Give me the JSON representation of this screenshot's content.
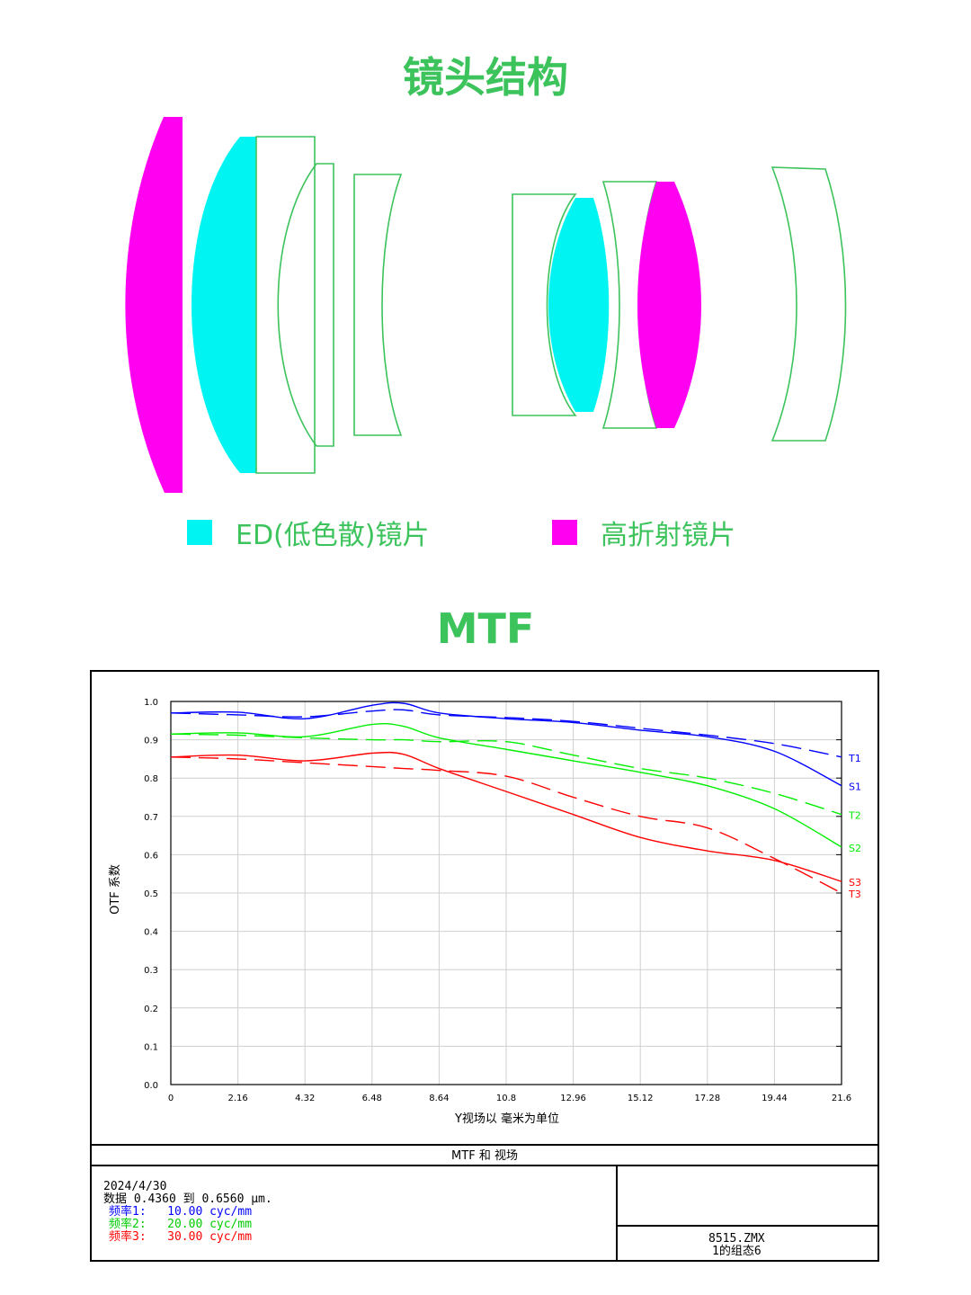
{
  "titles": {
    "structure": "镜头结构",
    "mtf": "MTF"
  },
  "legend": [
    {
      "label": "ED(低色散)镜片",
      "color": "#00f5f2"
    },
    {
      "label": "高折射镜片",
      "color": "#ff00f0"
    }
  ],
  "colors": {
    "green": "#3cc35c",
    "outline": "#3cc35c",
    "ed": "#00f5f2",
    "high_index": "#ff00f0"
  },
  "chart_data": {
    "type": "line",
    "title": "MTF 和 视场",
    "xlabel": "Y视场以 毫米为单位",
    "ylabel": "OTF 系数",
    "xlim": [
      0,
      21.6
    ],
    "ylim": [
      0,
      1.0
    ],
    "grid": true,
    "x_ticks": [
      0,
      2.16,
      4.32,
      6.48,
      8.64,
      10.8,
      12.96,
      15.12,
      17.28,
      19.44,
      21.6
    ],
    "x_tick_labels": [
      "0",
      "2.16",
      "4.32",
      "6.48",
      "8.64",
      "10.8",
      "12.96",
      "15.12",
      "17.28",
      "19.44",
      "21.6"
    ],
    "y_ticks": [
      0,
      0.1,
      0.2,
      0.3,
      0.4,
      0.5,
      0.6,
      0.7,
      0.8,
      0.9,
      1.0
    ],
    "y_tick_labels": [
      "0.0",
      "0.1",
      "0.2",
      "0.3",
      "0.4",
      "0.5",
      "0.6",
      "0.7",
      "0.8",
      "0.9",
      "1.0"
    ],
    "x": [
      0,
      2.16,
      4.32,
      6.48,
      7.5,
      8.64,
      10.8,
      12.96,
      15.12,
      17.28,
      19.44,
      21.6
    ],
    "series": [
      {
        "name": "T1",
        "color": "#0000ff",
        "dash": true,
        "values": [
          0.97,
          0.965,
          0.96,
          0.975,
          0.978,
          0.965,
          0.958,
          0.948,
          0.93,
          0.912,
          0.89,
          0.855
        ]
      },
      {
        "name": "S1",
        "color": "#0000ff",
        "dash": false,
        "values": [
          0.97,
          0.972,
          0.955,
          0.99,
          0.995,
          0.97,
          0.955,
          0.945,
          0.925,
          0.908,
          0.87,
          0.78
        ]
      },
      {
        "name": "T2",
        "color": "#00ee00",
        "dash": true,
        "values": [
          0.915,
          0.912,
          0.905,
          0.9,
          0.9,
          0.895,
          0.895,
          0.86,
          0.825,
          0.8,
          0.76,
          0.705
        ]
      },
      {
        "name": "S2",
        "color": "#00ee00",
        "dash": false,
        "values": [
          0.915,
          0.918,
          0.908,
          0.94,
          0.935,
          0.905,
          0.875,
          0.845,
          0.815,
          0.78,
          0.72,
          0.62
        ]
      },
      {
        "name": "T3",
        "color": "#ff0000",
        "dash": true,
        "values": [
          0.855,
          0.85,
          0.84,
          0.83,
          0.825,
          0.82,
          0.805,
          0.75,
          0.7,
          0.67,
          0.59,
          0.5
        ]
      },
      {
        "name": "S3",
        "color": "#ff0000",
        "dash": false,
        "values": [
          0.855,
          0.86,
          0.845,
          0.865,
          0.862,
          0.825,
          0.765,
          0.705,
          0.645,
          0.61,
          0.585,
          0.53
        ]
      }
    ]
  },
  "info": {
    "date": "2024/4/30",
    "data_line": "数据 0.4360 到 0.6560 μm.",
    "freq": [
      {
        "label": "频率1:",
        "value": "10.00 cyc/mm",
        "color": "#0000ff"
      },
      {
        "label": "频率2:",
        "value": "20.00 cyc/mm",
        "color": "#00cc00"
      },
      {
        "label": "频率3:",
        "value": "30.00 cyc/mm",
        "color": "#ff0000"
      }
    ],
    "file": "8515.ZMX",
    "config": "1的组态6"
  }
}
